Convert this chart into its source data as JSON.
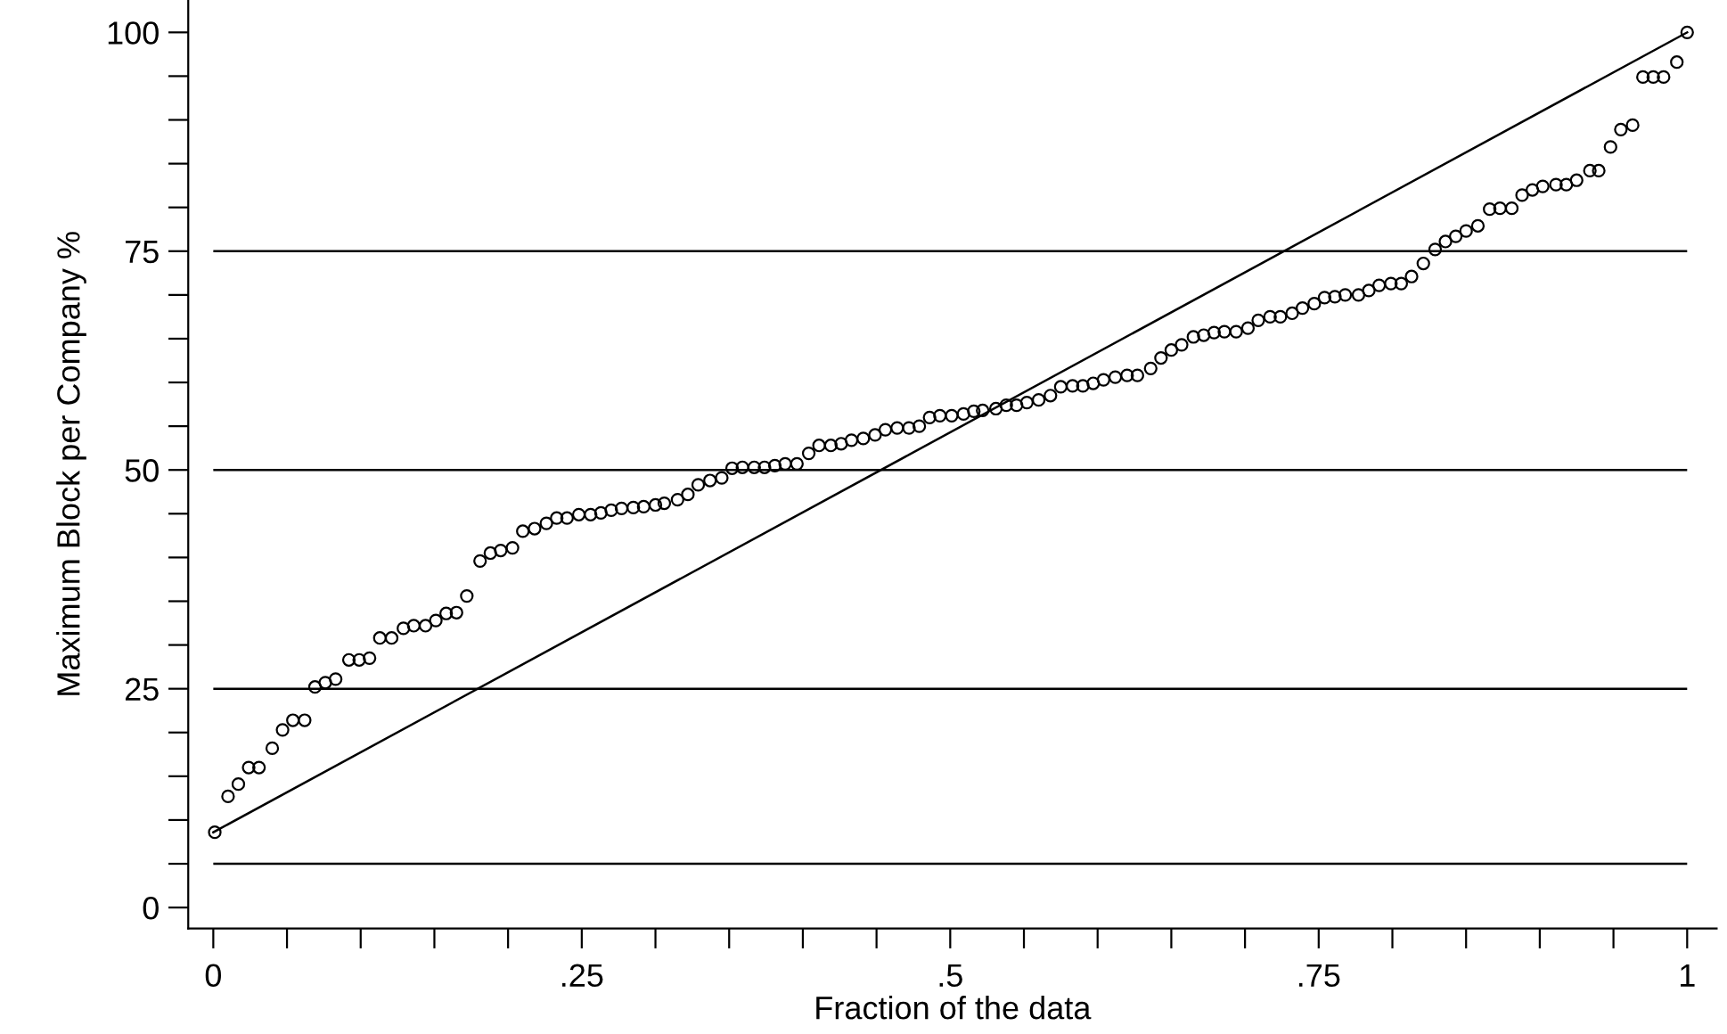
{
  "chart_data": {
    "type": "scatter",
    "xlabel": "Fraction of the data",
    "ylabel": "Maximum Block per Company %",
    "xlim": [
      -0.017,
      1.02
    ],
    "ylim": [
      -2.4,
      103.7
    ],
    "xticks": [
      {
        "value": 0,
        "label": "0"
      },
      {
        "value": 0.05,
        "label": null
      },
      {
        "value": 0.1,
        "label": null
      },
      {
        "value": 0.15,
        "label": null
      },
      {
        "value": 0.2,
        "label": null
      },
      {
        "value": 0.25,
        "label": ".25"
      },
      {
        "value": 0.3,
        "label": null
      },
      {
        "value": 0.35,
        "label": null
      },
      {
        "value": 0.4,
        "label": null
      },
      {
        "value": 0.45,
        "label": null
      },
      {
        "value": 0.5,
        "label": ".5"
      },
      {
        "value": 0.55,
        "label": null
      },
      {
        "value": 0.6,
        "label": null
      },
      {
        "value": 0.65,
        "label": null
      },
      {
        "value": 0.7,
        "label": null
      },
      {
        "value": 0.75,
        "label": ".75"
      },
      {
        "value": 0.8,
        "label": null
      },
      {
        "value": 0.85,
        "label": null
      },
      {
        "value": 0.9,
        "label": null
      },
      {
        "value": 0.95,
        "label": null
      },
      {
        "value": 1,
        "label": "1"
      }
    ],
    "yticks": [
      0,
      {
        "value": 5,
        "label": null
      },
      {
        "value": 10,
        "label": null
      },
      {
        "value": 15,
        "label": null
      },
      {
        "value": 20,
        "label": null
      },
      25,
      {
        "value": 30,
        "label": null
      },
      {
        "value": 35,
        "label": null
      },
      {
        "value": 40,
        "label": null
      },
      {
        "value": 45,
        "label": null
      },
      50,
      {
        "value": 55,
        "label": null
      },
      {
        "value": 60,
        "label": null
      },
      {
        "value": 65,
        "label": null
      },
      {
        "value": 70,
        "label": null
      },
      75,
      {
        "value": 80,
        "label": null
      },
      {
        "value": 85,
        "label": null
      },
      {
        "value": 90,
        "label": null
      },
      {
        "value": 95,
        "label": null
      },
      100
    ],
    "grid": false,
    "legend": false,
    "marker": "circle",
    "ref_lines": [
      {
        "axis": "y",
        "value": 5,
        "color": "#000000"
      },
      {
        "axis": "y",
        "value": 25,
        "color": "#000000"
      },
      {
        "axis": "y",
        "value": 50,
        "color": "#000000"
      },
      {
        "axis": "y",
        "value": 75,
        "color": "#000000"
      }
    ],
    "series": [
      {
        "color": "#000000",
        "x": [
          0.001,
          0.01,
          0.017,
          0.024,
          0.031,
          0.04,
          0.047,
          0.054,
          0.062,
          0.069,
          0.076,
          0.083,
          0.092,
          0.099,
          0.106,
          0.113,
          0.121,
          0.129,
          0.136,
          0.144,
          0.151,
          0.158,
          0.165,
          0.172,
          0.181,
          0.188,
          0.195,
          0.203,
          0.21,
          0.218,
          0.226,
          0.233,
          0.24,
          0.248,
          0.256,
          0.263,
          0.27,
          0.277,
          0.285,
          0.292,
          0.3,
          0.306,
          0.315,
          0.322,
          0.329,
          0.337,
          0.345,
          0.352,
          0.359,
          0.367,
          0.374,
          0.381,
          0.388,
          0.396,
          0.404,
          0.411,
          0.419,
          0.426,
          0.433,
          0.441,
          0.449,
          0.456,
          0.464,
          0.472,
          0.479,
          0.486,
          0.493,
          0.501,
          0.509,
          0.516,
          0.522,
          0.531,
          0.538,
          0.545,
          0.552,
          0.56,
          0.568,
          0.575,
          0.583,
          0.59,
          0.597,
          0.604,
          0.612,
          0.62,
          0.627,
          0.636,
          0.643,
          0.65,
          0.657,
          0.665,
          0.672,
          0.679,
          0.686,
          0.694,
          0.702,
          0.709,
          0.717,
          0.724,
          0.732,
          0.739,
          0.747,
          0.754,
          0.761,
          0.768,
          0.777,
          0.784,
          0.791,
          0.799,
          0.806,
          0.813,
          0.821,
          0.829,
          0.836,
          0.843,
          0.85,
          0.858,
          0.866,
          0.873,
          0.881,
          0.888,
          0.895,
          0.902,
          0.911,
          0.918,
          0.925,
          0.934,
          0.94,
          0.948,
          0.955,
          0.963,
          0.97,
          0.977,
          0.984,
          0.993,
          1.0
        ],
        "values": [
          8.6,
          12.7,
          14.1,
          16.0,
          16.0,
          18.2,
          20.3,
          21.4,
          21.4,
          25.2,
          25.7,
          26.1,
          28.3,
          28.3,
          28.5,
          30.8,
          30.8,
          31.9,
          32.2,
          32.2,
          32.8,
          33.6,
          33.7,
          35.6,
          39.6,
          40.5,
          40.8,
          41.1,
          43.0,
          43.3,
          43.9,
          44.5,
          44.5,
          44.9,
          44.9,
          45.1,
          45.4,
          45.6,
          45.7,
          45.8,
          46.0,
          46.2,
          46.6,
          47.2,
          48.3,
          48.8,
          49.1,
          50.2,
          50.3,
          50.3,
          50.3,
          50.5,
          50.7,
          50.7,
          51.9,
          52.8,
          52.8,
          53.0,
          53.4,
          53.6,
          54.0,
          54.6,
          54.8,
          54.8,
          55.0,
          56.0,
          56.2,
          56.2,
          56.4,
          56.7,
          56.8,
          57.0,
          57.4,
          57.4,
          57.7,
          58.0,
          58.5,
          59.5,
          59.6,
          59.6,
          59.9,
          60.3,
          60.6,
          60.8,
          60.8,
          61.6,
          62.8,
          63.7,
          64.3,
          65.2,
          65.4,
          65.7,
          65.8,
          65.8,
          66.2,
          67.1,
          67.5,
          67.5,
          67.9,
          68.5,
          69.0,
          69.7,
          69.8,
          70.0,
          70.0,
          70.5,
          71.1,
          71.3,
          71.3,
          72.1,
          73.6,
          75.2,
          76.1,
          76.7,
          77.3,
          77.9,
          79.8,
          79.9,
          79.9,
          81.4,
          82.0,
          82.4,
          82.6,
          82.6,
          83.1,
          84.2,
          84.2,
          86.9,
          88.9,
          89.4,
          94.9,
          94.9,
          94.9,
          96.6,
          100
        ]
      },
      {
        "type": "line",
        "color": "#000000",
        "marker": "none",
        "x": [
          0,
          1
        ],
        "values": [
          8.6,
          100
        ]
      }
    ]
  }
}
